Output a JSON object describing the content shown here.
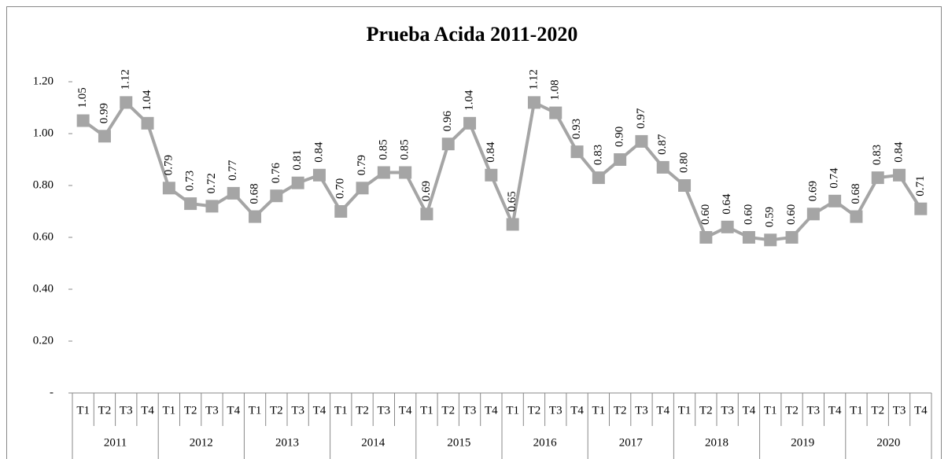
{
  "chart_data": {
    "type": "line",
    "title": "Prueba Acida 2011-2020",
    "categories": [
      "T1",
      "T2",
      "T3",
      "T4",
      "T1",
      "T2",
      "T3",
      "T4",
      "T1",
      "T2",
      "T3",
      "T4",
      "T1",
      "T2",
      "T3",
      "T4",
      "T1",
      "T2",
      "T3",
      "T4",
      "T1",
      "T2",
      "T3",
      "T4",
      "T1",
      "T2",
      "T3",
      "T4",
      "T1",
      "T2",
      "T3",
      "T4",
      "T1",
      "T2",
      "T3",
      "T4",
      "T1",
      "T2",
      "T3",
      "T4"
    ],
    "category_groups": [
      "2011",
      "2012",
      "2013",
      "2014",
      "2015",
      "2016",
      "2017",
      "2018",
      "2019",
      "2020"
    ],
    "values": [
      1.05,
      0.99,
      1.12,
      1.04,
      0.79,
      0.73,
      0.72,
      0.77,
      0.68,
      0.76,
      0.81,
      0.84,
      0.7,
      0.79,
      0.85,
      0.85,
      0.69,
      0.96,
      1.04,
      0.84,
      0.65,
      1.12,
      1.08,
      0.93,
      0.83,
      0.9,
      0.97,
      0.87,
      0.8,
      0.6,
      0.64,
      0.6,
      0.59,
      0.6,
      0.69,
      0.74,
      0.68,
      0.83,
      0.84,
      0.71
    ],
    "value_labels": [
      "1.05",
      "0.99",
      "1.12",
      "1.04",
      "0.79",
      "0.73",
      "0.72",
      "0.77",
      "0.68",
      "0.76",
      "0.81",
      "0.84",
      "0.70",
      "0.79",
      "0.85",
      "0.85",
      "0.69",
      "0.96",
      "1.04",
      "0.84",
      "0.65",
      "1.12",
      "1.08",
      "0.93",
      "0.83",
      "0.90",
      "0.97",
      "0.87",
      "0.80",
      "0.60",
      "0.64",
      "0.60",
      "0.59",
      "0.60",
      "0.69",
      "0.74",
      "0.68",
      "0.83",
      "0.84",
      "0.71"
    ],
    "color": "#a5a5a5",
    "ylim": [
      0,
      1.2
    ],
    "yticks": [
      {
        "value": 0,
        "label": "-"
      },
      {
        "value": 0.2,
        "label": "0.20"
      },
      {
        "value": 0.4,
        "label": "0.40"
      },
      {
        "value": 0.6,
        "label": "0.60"
      },
      {
        "value": 0.8,
        "label": "0.80"
      },
      {
        "value": 1.0,
        "label": "1.00"
      },
      {
        "value": 1.2,
        "label": "1.20"
      }
    ]
  }
}
